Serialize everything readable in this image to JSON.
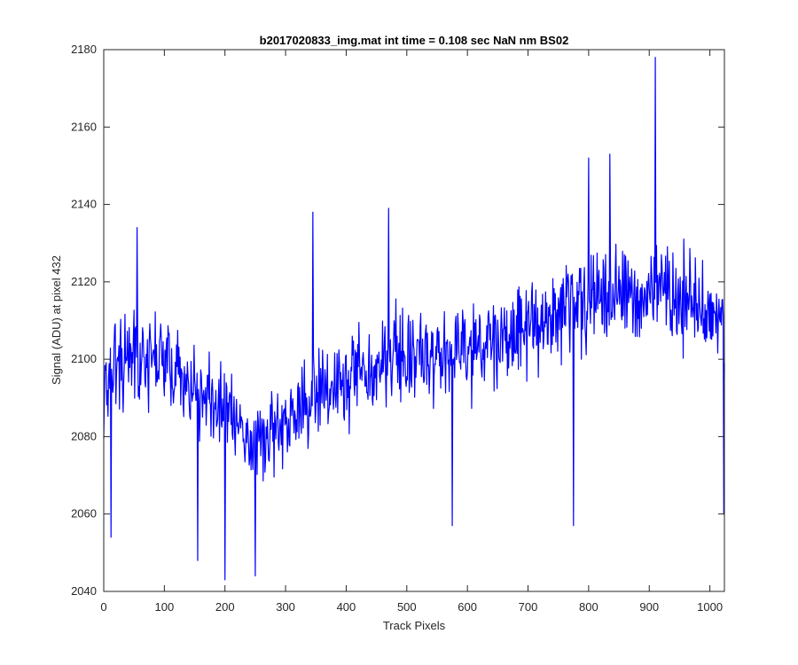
{
  "chart_data": {
    "type": "line",
    "title": "b2017020833_img.mat int time = 0.108 sec  NaN nm BS02",
    "xlabel": "Track Pixels",
    "ylabel": "Signal (ADU) at pixel 432",
    "xlim": [
      0,
      1024
    ],
    "ylim": [
      2040,
      2180
    ],
    "xticks": [
      0,
      100,
      200,
      300,
      400,
      500,
      600,
      700,
      800,
      900,
      1000
    ],
    "yticks": [
      2040,
      2060,
      2080,
      2100,
      2120,
      2140,
      2160,
      2180
    ],
    "grid": false,
    "line_color": "#0000ff",
    "series": [
      {
        "x": [
          0,
          10,
          20,
          30,
          40,
          50,
          60,
          70,
          80,
          90,
          100,
          110,
          120,
          130,
          140,
          150,
          160,
          170,
          180,
          190,
          200,
          210,
          220,
          230,
          240,
          250,
          260,
          270,
          280,
          290,
          300,
          310,
          320,
          330,
          340,
          350,
          360,
          370,
          380,
          390,
          400,
          410,
          420,
          430,
          440,
          450,
          460,
          470,
          480,
          490,
          500,
          510,
          520,
          530,
          540,
          550,
          560,
          570,
          580,
          590,
          600,
          610,
          620,
          630,
          640,
          650,
          660,
          670,
          680,
          690,
          700,
          710,
          720,
          730,
          740,
          750,
          760,
          770,
          780,
          790,
          800,
          810,
          820,
          830,
          840,
          850,
          860,
          870,
          880,
          890,
          900,
          910,
          920,
          930,
          940,
          950,
          960,
          970,
          980,
          990,
          1000,
          1010,
          1020,
          1023
        ],
        "y": [
          2092,
          2098,
          2099,
          2098,
          2100,
          2101,
          2100,
          2099,
          2100,
          2103,
          2100,
          2098,
          2097,
          2094,
          2093,
          2093,
          2092,
          2091,
          2089,
          2088,
          2086,
          2084,
          2083,
          2082,
          2081,
          2080,
          2079,
          2080,
          2081,
          2082,
          2083,
          2084,
          2086,
          2088,
          2090,
          2091,
          2092,
          2092,
          2093,
          2094,
          2095,
          2096,
          2097,
          2097,
          2097,
          2097,
          2098,
          2099,
          2100,
          2100,
          2101,
          2101,
          2100,
          2100,
          2101,
          2101,
          2101,
          2101,
          2102,
          2102,
          2102,
          2103,
          2103,
          2104,
          2105,
          2105,
          2106,
          2106,
          2107,
          2108,
          2108,
          2109,
          2110,
          2110,
          2111,
          2112,
          2112,
          2113,
          2113,
          2114,
          2114,
          2115,
          2116,
          2116,
          2117,
          2117,
          2117,
          2116,
          2116,
          2116,
          2117,
          2118,
          2118,
          2117,
          2116,
          2115,
          2115,
          2114,
          2113,
          2112,
          2111,
          2111,
          2110,
          2109
        ],
        "noise_amplitude": 11,
        "spikes": [
          {
            "x": 12,
            "y": 2054
          },
          {
            "x": 55,
            "y": 2134
          },
          {
            "x": 155,
            "y": 2048
          },
          {
            "x": 200,
            "y": 2043
          },
          {
            "x": 250,
            "y": 2044
          },
          {
            "x": 345,
            "y": 2138
          },
          {
            "x": 470,
            "y": 2139
          },
          {
            "x": 575,
            "y": 2057
          },
          {
            "x": 775,
            "y": 2057
          },
          {
            "x": 800,
            "y": 2152
          },
          {
            "x": 835,
            "y": 2153
          },
          {
            "x": 910,
            "y": 2178
          },
          {
            "x": 1023,
            "y": 2060
          }
        ]
      }
    ]
  }
}
